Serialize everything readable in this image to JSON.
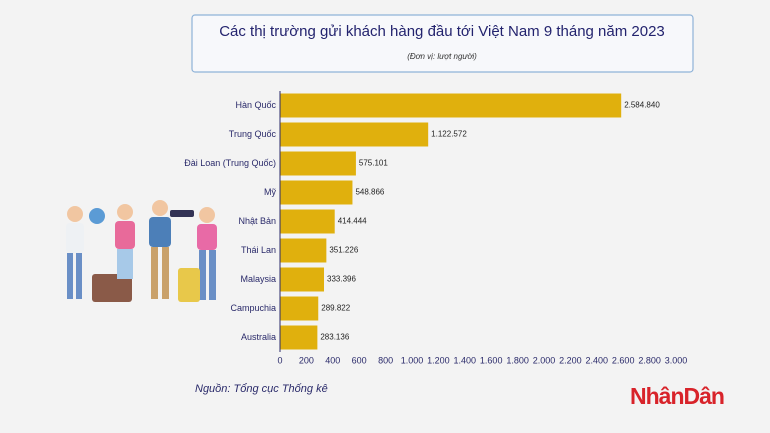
{
  "chart_data": {
    "type": "barh",
    "title": "Các thị trường gửi khách hàng đầu tới Việt Nam 9 tháng năm 2023",
    "subtitle": "(Đơn vị:  lượt người)",
    "source": "Nguồn: Tổng cục Thống kê",
    "logo": "NhânDân",
    "categories": [
      "Hàn Quốc",
      "Trung Quốc",
      "Đài Loan (Trung Quốc)",
      "Mỹ",
      "Nhật Bản",
      "Thái Lan",
      "Malaysia",
      "Campuchia",
      "Australia"
    ],
    "values": [
      2584.84,
      1122.572,
      575.101,
      548.866,
      414.444,
      351.226,
      333.396,
      289.822,
      283.136
    ],
    "value_labels": [
      "2.584.840",
      "1.122.572",
      "575.101",
      "548.866",
      "414.444",
      "351.226",
      "333.396",
      "289.822",
      "283.136"
    ],
    "color": "#e0b00d",
    "xlim": [
      0,
      3000
    ],
    "xticks": [
      0,
      200,
      400,
      600,
      800,
      {
        "value": 1000,
        "label": "1.000"
      },
      {
        "value": 1200,
        "label": "1.200"
      },
      {
        "value": 1400,
        "label": "1.400"
      },
      {
        "value": 1600,
        "label": "1.600"
      },
      {
        "value": 1800,
        "label": "1.800"
      },
      {
        "value": 2000,
        "label": "2.000"
      },
      {
        "value": 2200,
        "label": "2.200"
      },
      {
        "value": 2400,
        "label": "2.400"
      },
      {
        "value": 2600,
        "label": "2.600"
      },
      {
        "value": 2800,
        "label": "2.800"
      },
      {
        "value": 3000,
        "label": "3.000"
      }
    ]
  }
}
